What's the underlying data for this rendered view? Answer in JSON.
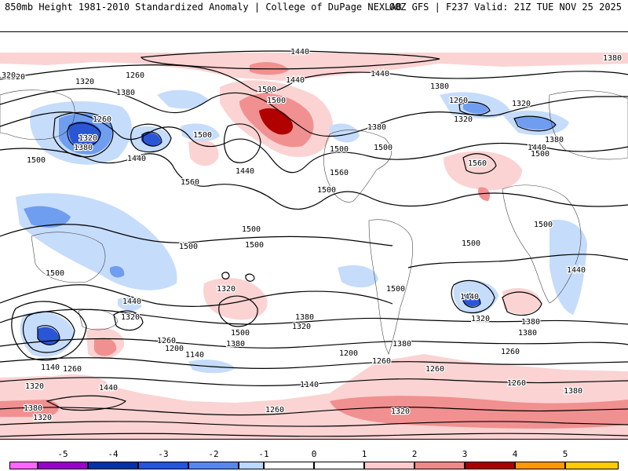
{
  "header": {
    "left": "850mb Height 1981-2010 Standardized Anomaly | College of DuPage NEXLAB",
    "right": "00Z GFS | F237 Valid: 21Z TUE NOV 25 2025"
  },
  "contour_labels": [
    "1440",
    "1380",
    "1320",
    "1260",
    "1320",
    "1380",
    "1500",
    "1440",
    "1500",
    "1260",
    "1320",
    "1320",
    "1380",
    "1440",
    "1500",
    "1560",
    "1500",
    "1440",
    "1500",
    "1560",
    "1380",
    "1440",
    "1320",
    "1260",
    "1380",
    "1320",
    "1440",
    "1500",
    "1380",
    "1560",
    "1500",
    "1500",
    "1500",
    "1500",
    "1500",
    "1500",
    "1500",
    "1440",
    "1320",
    "1500",
    "1380",
    "1320",
    "1260",
    "1200",
    "1140",
    "1380",
    "1500",
    "1440",
    "1380",
    "1320",
    "1260",
    "1380",
    "1200",
    "1260",
    "1260",
    "1140",
    "1260",
    "1140",
    "1320",
    "1440",
    "1380",
    "1320",
    "1260",
    "1320",
    "1260",
    "1380",
    "1500",
    "1440",
    "1320",
    "1380"
  ],
  "colorbar": {
    "labels": [
      "-5",
      "-4",
      "-3",
      "-2",
      "-1",
      "0",
      "1",
      "2",
      "3",
      "4",
      "5"
    ],
    "colors": [
      "#ff66ff",
      "#9900cc",
      "#0033aa",
      "#2255dd",
      "#5588ee",
      "#bbd8ff",
      "#ffffff",
      "#ffcccc",
      "#f08888",
      "#dd3333",
      "#aa0000",
      "#ff9900",
      "#ffcc00"
    ]
  },
  "anomaly_colors": {
    "neg1": "#c6dcfb",
    "neg2": "#6f9df0",
    "neg3": "#2a56d6",
    "pos1": "#fbd3d3",
    "pos2": "#f19090",
    "pos3": "#e03030",
    "pos4": "#b00000"
  }
}
